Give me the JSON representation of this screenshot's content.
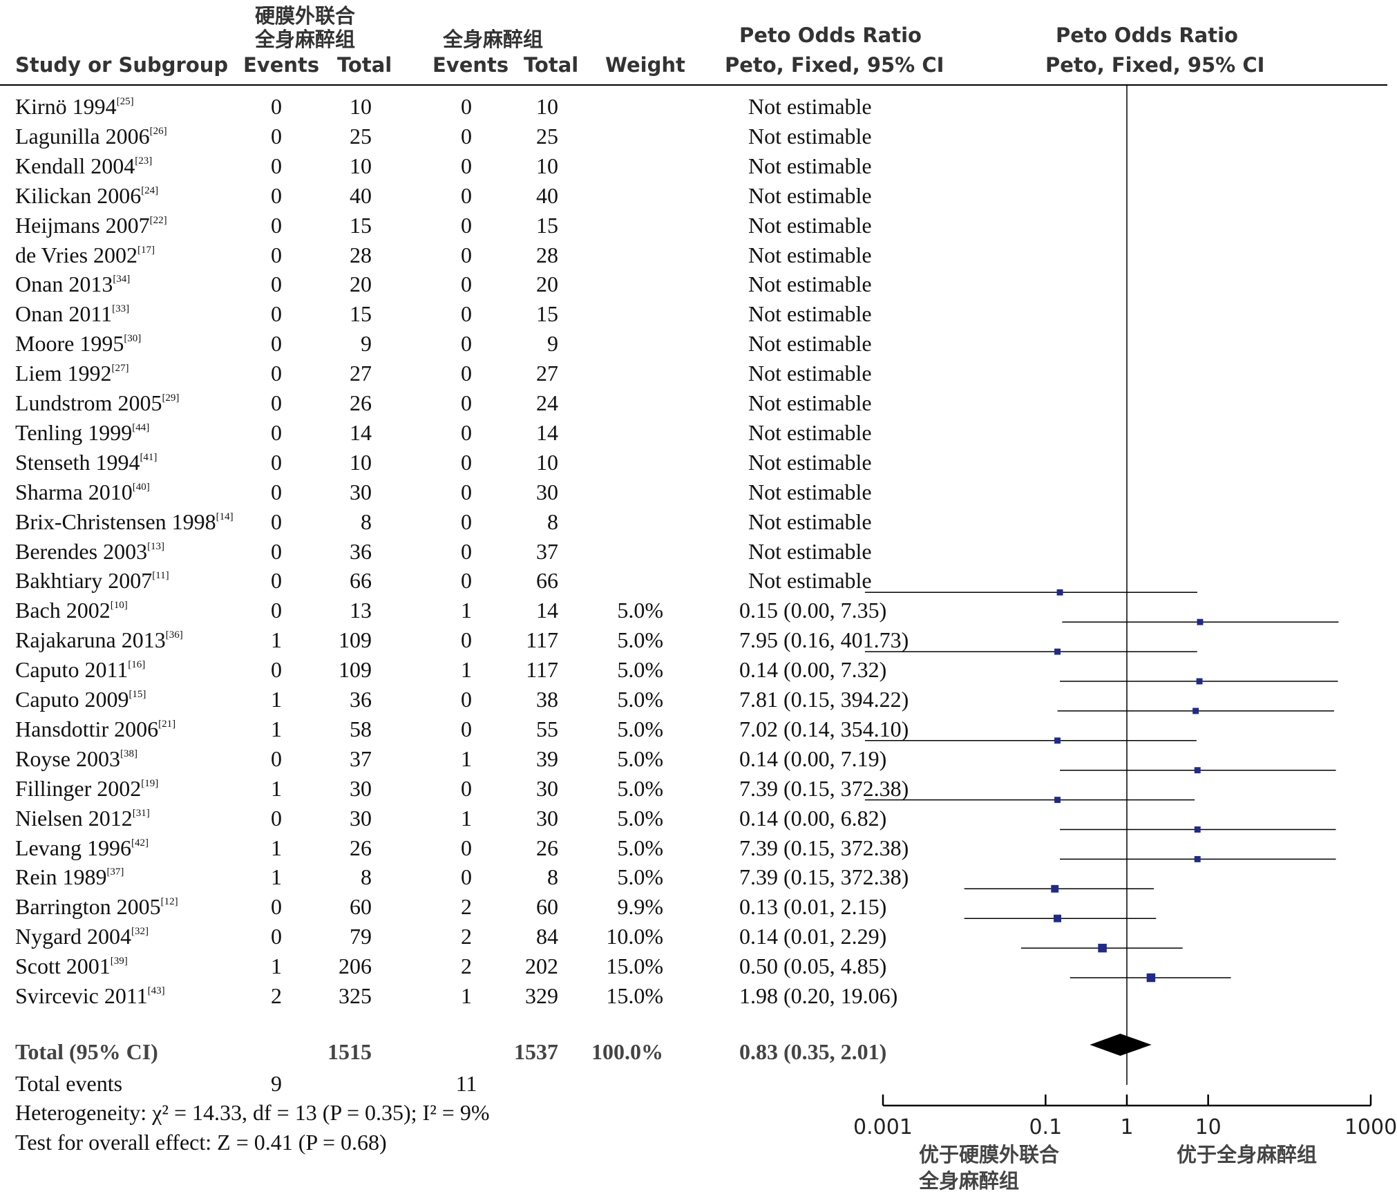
{
  "header": {
    "study_label": "Study or Subgroup",
    "group1_line1": "硬膜外联合",
    "group1_line2": "全身麻醉组",
    "group2": "全身麻醉组",
    "events_label": "Events",
    "total_label": "Total",
    "weight_label": "Weight",
    "or_title": "Peto Odds Ratio",
    "or_method": "Peto, Fixed, 95% CI",
    "plot_title": "Peto Odds Ratio",
    "plot_method": "Peto, Fixed, 95% CI"
  },
  "studies": [
    {
      "name": "Kirnö 1994",
      "ref": "[25]",
      "e1": "0",
      "t1": "10",
      "e2": "0",
      "t2": "10",
      "weight": "",
      "ci_text": "Not estimable"
    },
    {
      "name": "Lagunilla 2006",
      "ref": "[26]",
      "e1": "0",
      "t1": "25",
      "e2": "0",
      "t2": "25",
      "weight": "",
      "ci_text": "Not estimable"
    },
    {
      "name": "Kendall 2004",
      "ref": "[23]",
      "e1": "0",
      "t1": "10",
      "e2": "0",
      "t2": "10",
      "weight": "",
      "ci_text": "Not estimable"
    },
    {
      "name": "Kilickan 2006",
      "ref": "[24]",
      "e1": "0",
      "t1": "40",
      "e2": "0",
      "t2": "40",
      "weight": "",
      "ci_text": "Not estimable"
    },
    {
      "name": "Heijmans 2007",
      "ref": "[22]",
      "e1": "0",
      "t1": "15",
      "e2": "0",
      "t2": "15",
      "weight": "",
      "ci_text": "Not estimable"
    },
    {
      "name": "de Vries 2002",
      "ref": "[17]",
      "e1": "0",
      "t1": "28",
      "e2": "0",
      "t2": "28",
      "weight": "",
      "ci_text": "Not estimable"
    },
    {
      "name": "Onan 2013",
      "ref": "[34]",
      "e1": "0",
      "t1": "20",
      "e2": "0",
      "t2": "20",
      "weight": "",
      "ci_text": "Not estimable"
    },
    {
      "name": "Onan 2011",
      "ref": "[33]",
      "e1": "0",
      "t1": "15",
      "e2": "0",
      "t2": "15",
      "weight": "",
      "ci_text": "Not estimable"
    },
    {
      "name": "Moore 1995",
      "ref": "[30]",
      "e1": "0",
      "t1": "9",
      "e2": "0",
      "t2": "9",
      "weight": "",
      "ci_text": "Not estimable"
    },
    {
      "name": "Liem 1992",
      "ref": "[27]",
      "e1": "0",
      "t1": "27",
      "e2": "0",
      "t2": "27",
      "weight": "",
      "ci_text": "Not estimable"
    },
    {
      "name": "Lundstrom 2005",
      "ref": "[29]",
      "e1": "0",
      "t1": "26",
      "e2": "0",
      "t2": "24",
      "weight": "",
      "ci_text": "Not estimable"
    },
    {
      "name": "Tenling 1999",
      "ref": "[44]",
      "e1": "0",
      "t1": "14",
      "e2": "0",
      "t2": "14",
      "weight": "",
      "ci_text": "Not estimable"
    },
    {
      "name": "Stenseth 1994",
      "ref": "[41]",
      "e1": "0",
      "t1": "10",
      "e2": "0",
      "t2": "10",
      "weight": "",
      "ci_text": "Not estimable"
    },
    {
      "name": "Sharma 2010",
      "ref": "[40]",
      "e1": "0",
      "t1": "30",
      "e2": "0",
      "t2": "30",
      "weight": "",
      "ci_text": "Not estimable"
    },
    {
      "name": "Brix-Christensen 1998",
      "ref": "[14]",
      "e1": "0",
      "t1": "8",
      "e2": "0",
      "t2": "8",
      "weight": "",
      "ci_text": "Not estimable"
    },
    {
      "name": "Berendes 2003",
      "ref": "[13]",
      "e1": "0",
      "t1": "36",
      "e2": "0",
      "t2": "37",
      "weight": "",
      "ci_text": "Not estimable"
    },
    {
      "name": "Bakhtiary 2007",
      "ref": "[11]",
      "e1": "0",
      "t1": "66",
      "e2": "0",
      "t2": "66",
      "weight": "",
      "ci_text": "Not estimable"
    },
    {
      "name": "Bach 2002",
      "ref": "[10]",
      "e1": "0",
      "t1": "13",
      "e2": "1",
      "t2": "14",
      "weight": "5.0%",
      "ci_text": "0.15 (0.00, 7.35)"
    },
    {
      "name": "Rajakaruna 2013",
      "ref": "[36]",
      "e1": "1",
      "t1": "109",
      "e2": "0",
      "t2": "117",
      "weight": "5.0%",
      "ci_text": "7.95 (0.16, 401.73)"
    },
    {
      "name": "Caputo 2011",
      "ref": "[16]",
      "e1": "0",
      "t1": "109",
      "e2": "1",
      "t2": "117",
      "weight": "5.0%",
      "ci_text": "0.14 (0.00, 7.32)"
    },
    {
      "name": "Caputo 2009",
      "ref": "[15]",
      "e1": "1",
      "t1": "36",
      "e2": "0",
      "t2": "38",
      "weight": "5.0%",
      "ci_text": "7.81 (0.15, 394.22)"
    },
    {
      "name": "Hansdottir 2006",
      "ref": "[21]",
      "e1": "1",
      "t1": "58",
      "e2": "0",
      "t2": "55",
      "weight": "5.0%",
      "ci_text": "7.02 (0.14, 354.10)"
    },
    {
      "name": "Royse 2003",
      "ref": "[38]",
      "e1": "0",
      "t1": "37",
      "e2": "1",
      "t2": "39",
      "weight": "5.0%",
      "ci_text": "0.14 (0.00, 7.19)"
    },
    {
      "name": "Fillinger 2002",
      "ref": "[19]",
      "e1": "1",
      "t1": "30",
      "e2": "0",
      "t2": "30",
      "weight": "5.0%",
      "ci_text": "7.39 (0.15, 372.38)"
    },
    {
      "name": "Nielsen 2012",
      "ref": "[31]",
      "e1": "0",
      "t1": "30",
      "e2": "1",
      "t2": "30",
      "weight": "5.0%",
      "ci_text": "0.14 (0.00, 6.82)"
    },
    {
      "name": "Levang 1996",
      "ref": "[42]",
      "e1": "1",
      "t1": "26",
      "e2": "0",
      "t2": "26",
      "weight": "5.0%",
      "ci_text": "7.39 (0.15, 372.38)"
    },
    {
      "name": "Rein 1989",
      "ref": "[37]",
      "e1": "1",
      "t1": "8",
      "e2": "0",
      "t2": "8",
      "weight": "5.0%",
      "ci_text": "7.39 (0.15, 372.38)"
    },
    {
      "name": "Barrington 2005",
      "ref": "[12]",
      "e1": "0",
      "t1": "60",
      "e2": "2",
      "t2": "60",
      "weight": "9.9%",
      "ci_text": "0.13 (0.01, 2.15)"
    },
    {
      "name": "Nygard 2004",
      "ref": "[32]",
      "e1": "0",
      "t1": "79",
      "e2": "2",
      "t2": "84",
      "weight": "10.0%",
      "ci_text": "0.14 (0.01, 2.29)"
    },
    {
      "name": "Scott 2001",
      "ref": "[39]",
      "e1": "1",
      "t1": "206",
      "e2": "2",
      "t2": "202",
      "weight": "15.0%",
      "ci_text": "0.50 (0.05, 4.85)"
    },
    {
      "name": "Svircevic 2011",
      "ref": "[43]",
      "e1": "2",
      "t1": "325",
      "e2": "1",
      "t2": "329",
      "weight": "15.0%",
      "ci_text": "1.98 (0.20, 19.06)"
    }
  ],
  "total": {
    "label": "Total (95% CI)",
    "t1": "1515",
    "t2": "1537",
    "weight": "100.0%",
    "ci_text": "0.83 (0.35, 2.01)"
  },
  "total_events": {
    "label": "Total events",
    "e1": "9",
    "e2": "11"
  },
  "heterogeneity": "Heterogeneity: χ² = 14.33, df = 13 (P = 0.35); I² = 9%",
  "overall_effect": "Test for overall effect: Z = 0.41 (P = 0.68)",
  "favours": {
    "left_line1": "优于硬膜外联合",
    "left_line2": "全身麻醉组",
    "right": "优于全身麻醉组"
  },
  "colors": {
    "marker": "#1f2a8c",
    "diamond": "#000000",
    "line": "#000000"
  },
  "chart_data": {
    "type": "forest",
    "x_scale": "log",
    "xlim": [
      0.001,
      1000
    ],
    "ticks": [
      0.001,
      0.1,
      1,
      10,
      1000
    ],
    "tick_labels": [
      "0.001",
      "0.1",
      "1",
      "10",
      "1000"
    ],
    "null_line": 1,
    "estimates": [
      {
        "study": "Bach 2002",
        "or": 0.15,
        "lo": 0.0,
        "hi": 7.35,
        "weight": 5.0
      },
      {
        "study": "Rajakaruna 2013",
        "or": 7.95,
        "lo": 0.16,
        "hi": 401.73,
        "weight": 5.0
      },
      {
        "study": "Caputo 2011",
        "or": 0.14,
        "lo": 0.0,
        "hi": 7.32,
        "weight": 5.0
      },
      {
        "study": "Caputo 2009",
        "or": 7.81,
        "lo": 0.15,
        "hi": 394.22,
        "weight": 5.0
      },
      {
        "study": "Hansdottir 2006",
        "or": 7.02,
        "lo": 0.14,
        "hi": 354.1,
        "weight": 5.0
      },
      {
        "study": "Royse 2003",
        "or": 0.14,
        "lo": 0.0,
        "hi": 7.19,
        "weight": 5.0
      },
      {
        "study": "Fillinger 2002",
        "or": 7.39,
        "lo": 0.15,
        "hi": 372.38,
        "weight": 5.0
      },
      {
        "study": "Nielsen 2012",
        "or": 0.14,
        "lo": 0.0,
        "hi": 6.82,
        "weight": 5.0
      },
      {
        "study": "Levang 1996",
        "or": 7.39,
        "lo": 0.15,
        "hi": 372.38,
        "weight": 5.0
      },
      {
        "study": "Rein 1989",
        "or": 7.39,
        "lo": 0.15,
        "hi": 372.38,
        "weight": 5.0
      },
      {
        "study": "Barrington 2005",
        "or": 0.13,
        "lo": 0.01,
        "hi": 2.15,
        "weight": 9.9
      },
      {
        "study": "Nygard 2004",
        "or": 0.14,
        "lo": 0.01,
        "hi": 2.29,
        "weight": 10.0
      },
      {
        "study": "Scott 2001",
        "or": 0.5,
        "lo": 0.05,
        "hi": 4.85,
        "weight": 15.0
      },
      {
        "study": "Svircevic 2011",
        "or": 1.98,
        "lo": 0.2,
        "hi": 19.06,
        "weight": 15.0
      }
    ],
    "pooled": {
      "or": 0.83,
      "lo": 0.35,
      "hi": 2.01
    }
  }
}
